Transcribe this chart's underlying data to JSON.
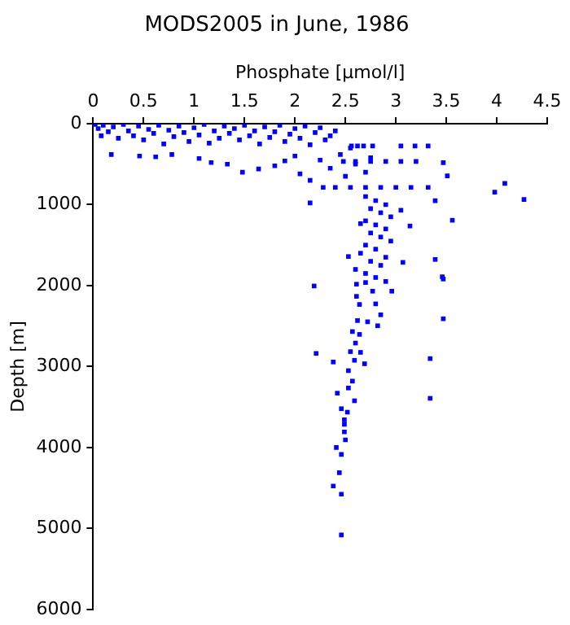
{
  "chart_data": {
    "type": "scatter",
    "title": "MODS2005 in June, 1986",
    "xlabel": "Phosphate [μmol/l]",
    "ylabel": "Depth [m]",
    "color": "#0000ff",
    "marker": "square",
    "grid": false,
    "legend": false,
    "xlim": [
      0,
      4.5
    ],
    "xticks": [
      0,
      0.5,
      1,
      1.5,
      2,
      2.5,
      3,
      3.5,
      4,
      4.5
    ],
    "ylim": [
      6000,
      0
    ],
    "yticks": [
      0,
      1000,
      2000,
      3000,
      4000,
      5000,
      6000
    ],
    "x": [
      0.02,
      0.05,
      0.08,
      0.1,
      0.15,
      0.2,
      0.25,
      0.3,
      0.35,
      0.4,
      0.45,
      0.5,
      0.55,
      0.6,
      0.65,
      0.7,
      0.75,
      0.8,
      0.85,
      0.9,
      0.95,
      1.0,
      1.05,
      1.1,
      1.15,
      1.2,
      1.25,
      1.3,
      1.35,
      1.4,
      1.45,
      1.5,
      1.55,
      1.6,
      1.65,
      1.7,
      1.75,
      1.8,
      1.85,
      1.9,
      1.95,
      2.0,
      2.05,
      2.1,
      2.15,
      2.2,
      2.25,
      2.3,
      2.35,
      2.4,
      0.18,
      0.46,
      0.62,
      0.78,
      1.05,
      1.17,
      1.33,
      1.48,
      1.64,
      1.8,
      1.9,
      2.0,
      2.05,
      2.15,
      2.25,
      2.35,
      2.45,
      2.5,
      2.55,
      2.6,
      2.7,
      2.75,
      2.56,
      2.62,
      2.68,
      2.77,
      3.05,
      3.19,
      3.32,
      2.48,
      2.6,
      2.75,
      2.9,
      3.05,
      3.2,
      3.47,
      3.51,
      2.28,
      2.4,
      2.55,
      2.7,
      2.85,
      3.0,
      3.15,
      3.32,
      3.98,
      4.08,
      4.27,
      3.39,
      3.56,
      3.05,
      3.14,
      3.07,
      3.39,
      3.46,
      2.15,
      2.53,
      2.65,
      2.7,
      2.8,
      2.9,
      2.75,
      2.85,
      2.95,
      2.7,
      2.8,
      2.9,
      2.75,
      2.85,
      2.95,
      2.7,
      2.8,
      2.65,
      2.9,
      2.75,
      2.85,
      2.6,
      2.7,
      2.8,
      2.19,
      2.61,
      2.7,
      2.9,
      2.96,
      2.77,
      3.47,
      3.47,
      2.64,
      2.8,
      2.61,
      2.85,
      2.62,
      2.72,
      2.82,
      2.57,
      2.64,
      2.21,
      2.6,
      2.55,
      2.65,
      3.34,
      2.38,
      2.59,
      2.69,
      2.53,
      2.57,
      2.53,
      2.42,
      3.34,
      2.59,
      2.46,
      2.52,
      2.49,
      2.49,
      2.49,
      2.5,
      2.41,
      2.46,
      2.44,
      2.38,
      2.46,
      2.46
    ],
    "values": [
      10,
      60,
      150,
      20,
      100,
      40,
      180,
      10,
      90,
      150,
      30,
      200,
      70,
      120,
      20,
      250,
      80,
      160,
      30,
      110,
      220,
      50,
      140,
      10,
      240,
      90,
      180,
      30,
      120,
      60,
      200,
      20,
      150,
      90,
      250,
      40,
      170,
      100,
      20,
      220,
      130,
      60,
      180,
      30,
      260,
      110,
      50,
      200,
      150,
      90,
      380,
      400,
      410,
      380,
      430,
      480,
      500,
      600,
      560,
      520,
      460,
      400,
      620,
      700,
      450,
      550,
      380,
      650,
      300,
      500,
      600,
      420,
      275,
      275,
      275,
      275,
      275,
      275,
      275,
      467,
      467,
      467,
      467,
      467,
      467,
      481,
      645,
      787,
      787,
      787,
      787,
      787,
      787,
      787,
      787,
      845,
      737,
      937,
      951,
      1193,
      1069,
      1264,
      1713,
      1677,
      1891,
      979,
      1641,
      1235,
      900,
      950,
      1000,
      1050,
      1100,
      1150,
      1200,
      1250,
      1300,
      1350,
      1400,
      1450,
      1500,
      1550,
      1600,
      1650,
      1700,
      1750,
      1800,
      1850,
      1900,
      2005,
      1983,
      1962,
      1949,
      2069,
      2069,
      1919,
      2410,
      2233,
      2226,
      2133,
      2361,
      2432,
      2447,
      2496,
      2568,
      2603,
      2838,
      2710,
      2816,
      2825,
      2902,
      2944,
      2923,
      2966,
      3051,
      3180,
      3265,
      3329,
      3393,
      3423,
      3521,
      3564,
      3658,
      3714,
      3808,
      3906,
      4000,
      4085,
      4312,
      4476,
      4577,
      5081
    ]
  }
}
